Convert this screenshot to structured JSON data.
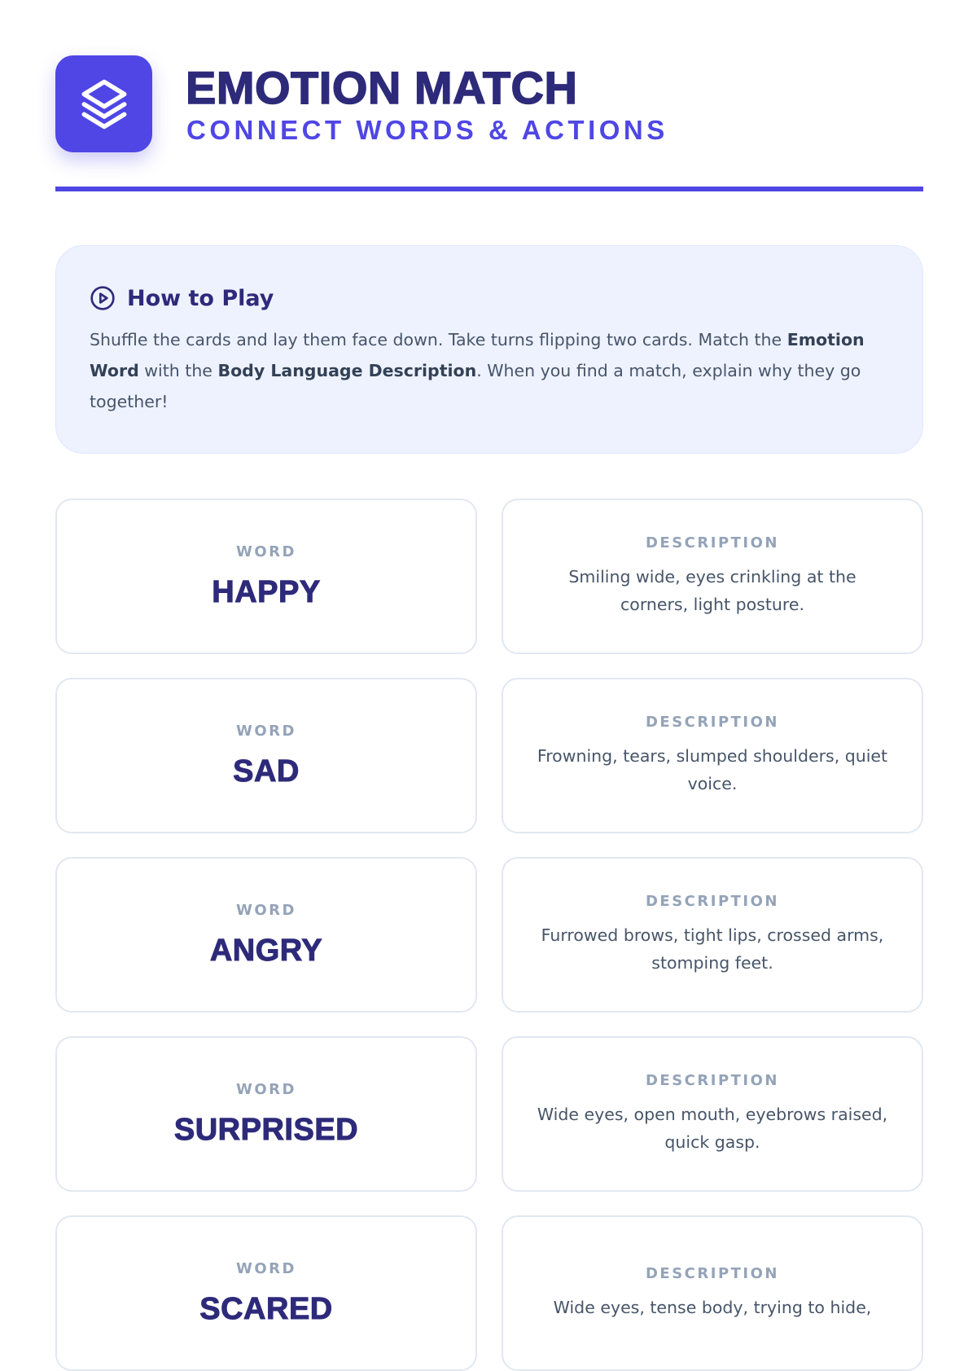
{
  "header": {
    "title": "EMOTION MATCH",
    "subtitle": "CONNECT WORDS & ACTIONS",
    "logo_icon": "layers-icon",
    "accent": "#4f46e5"
  },
  "how_to": {
    "icon": "play-circle-icon",
    "title": "How to Play",
    "parts": [
      "Shuffle the cards and lay them face down. Take turns flipping two cards. Match the ",
      "Emotion Word",
      " with the ",
      "Body Language Description",
      ". When you find a match, explain why they go together!"
    ]
  },
  "cards": [
    {
      "word_label": "WORD",
      "word": "HAPPY",
      "desc_label": "DESCRIPTION",
      "description": "Smiling wide, eyes crinkling at the corners, light posture."
    },
    {
      "word_label": "WORD",
      "word": "SAD",
      "desc_label": "DESCRIPTION",
      "description": "Frowning, tears, slumped shoulders, quiet voice."
    },
    {
      "word_label": "WORD",
      "word": "ANGRY",
      "desc_label": "DESCRIPTION",
      "description": "Furrowed brows, tight lips, crossed arms, stomping feet."
    },
    {
      "word_label": "WORD",
      "word": "SURPRISED",
      "desc_label": "DESCRIPTION",
      "description": "Wide eyes, open mouth, eyebrows raised, quick gasp."
    },
    {
      "word_label": "WORD",
      "word": "SCARED",
      "desc_label": "DESCRIPTION",
      "description": "Wide eyes, tense body, trying to hide,"
    }
  ]
}
